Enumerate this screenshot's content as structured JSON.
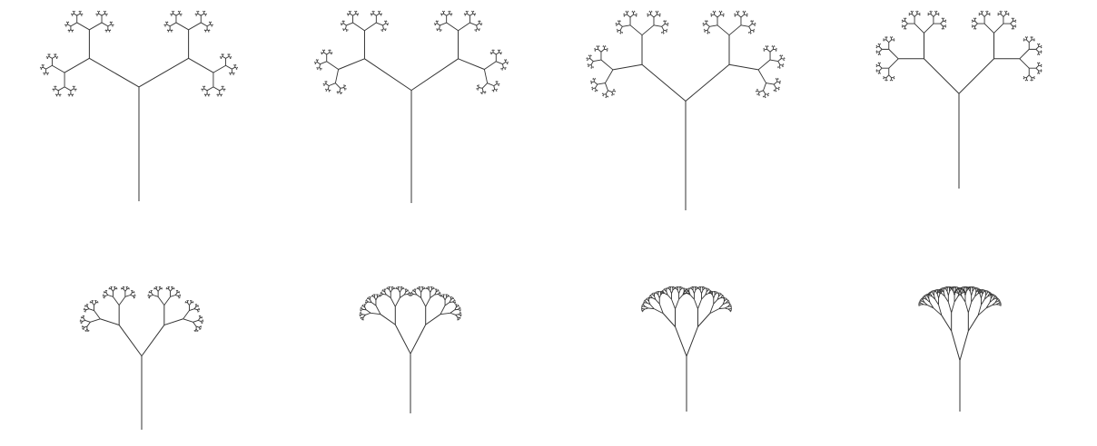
{
  "figure": {
    "background_color": "#ffffff",
    "stroke_color": "#333333",
    "panels": [
      {
        "id": "panel-1",
        "depth": 9,
        "branch_angle_deg": 120,
        "scale_ratio": 0.5
      },
      {
        "id": "panel-2",
        "depth": 9,
        "branch_angle_deg": 112,
        "scale_ratio": 0.5
      },
      {
        "id": "panel-3",
        "depth": 9,
        "branch_angle_deg": 100,
        "scale_ratio": 0.52
      },
      {
        "id": "panel-4",
        "depth": 9,
        "branch_angle_deg": 90,
        "scale_ratio": 0.52
      },
      {
        "id": "panel-5",
        "depth": 9,
        "branch_angle_deg": 72,
        "scale_ratio": 0.52
      },
      {
        "id": "panel-6",
        "depth": 9,
        "branch_angle_deg": 55,
        "scale_ratio": 0.55
      },
      {
        "id": "panel-7",
        "depth": 9,
        "branch_angle_deg": 42,
        "scale_ratio": 0.57
      },
      {
        "id": "panel-8",
        "depth": 9,
        "branch_angle_deg": 32,
        "scale_ratio": 0.6
      }
    ]
  }
}
